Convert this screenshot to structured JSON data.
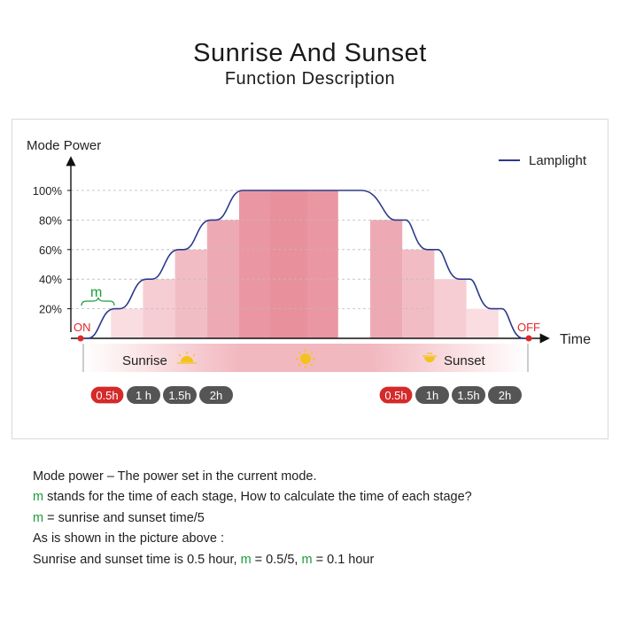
{
  "title": "Sunrise And Sunset",
  "subtitle": "Function Description",
  "chart_data": {
    "type": "area",
    "ylabel": "Mode Power",
    "xlabel": "Time",
    "y_ticks": [
      "100%",
      "80%",
      "60%",
      "40%",
      "20%"
    ],
    "y_tick_values": [
      100,
      80,
      60,
      40,
      20
    ],
    "ylim": [
      0,
      100
    ],
    "legend": {
      "label": "Lamplight",
      "position": "top-right",
      "color": "#2d3a8c"
    },
    "series": [
      {
        "name": "Lamplight",
        "x": [
          0,
          1,
          2,
          3,
          4,
          5,
          6,
          7,
          8,
          9,
          10,
          11,
          12,
          13,
          14,
          15
        ],
        "values": [
          0,
          20,
          40,
          60,
          80,
          100,
          100,
          100,
          100,
          100,
          100,
          80,
          60,
          40,
          20,
          0
        ]
      }
    ],
    "stage_width_label": "m",
    "on_label": "ON",
    "off_label": "OFF",
    "phases": [
      {
        "label": "Sunrise",
        "icon": "sunrise-icon"
      },
      {
        "label": "",
        "icon": "sun-icon"
      },
      {
        "label": "Sunset",
        "icon": "sunset-icon"
      }
    ],
    "sunrise_durations": [
      {
        "label": "0.5h",
        "selected": true
      },
      {
        "label": "1 h",
        "selected": false
      },
      {
        "label": "1.5h",
        "selected": false
      },
      {
        "label": "2h",
        "selected": false
      }
    ],
    "sunset_durations": [
      {
        "label": "0.5h",
        "selected": true
      },
      {
        "label": "1h",
        "selected": false
      },
      {
        "label": "1.5h",
        "selected": false
      },
      {
        "label": "2h",
        "selected": false
      }
    ],
    "colors": {
      "line": "#2d3a8c",
      "on_off": "#e02828",
      "m_label": "#1a9c3a",
      "selected_pill": "#d42a2a",
      "pill": "#555555"
    }
  },
  "notes": {
    "line1": "Mode power – The power set in the current mode.",
    "line2_m": "m",
    "line2_rest": " stands for the time of each stage, How to calculate the time of each stage?",
    "line3_m": "m",
    "line3_rest": " = sunrise and sunset time/5",
    "line4": "As is shown in the picture above :",
    "line5_a": "Sunrise and sunset time is 0.5 hour, ",
    "line5_m1": "m",
    "line5_b": " = 0.5/5, ",
    "line5_m2": "m",
    "line5_c": " = 0.1 hour"
  }
}
